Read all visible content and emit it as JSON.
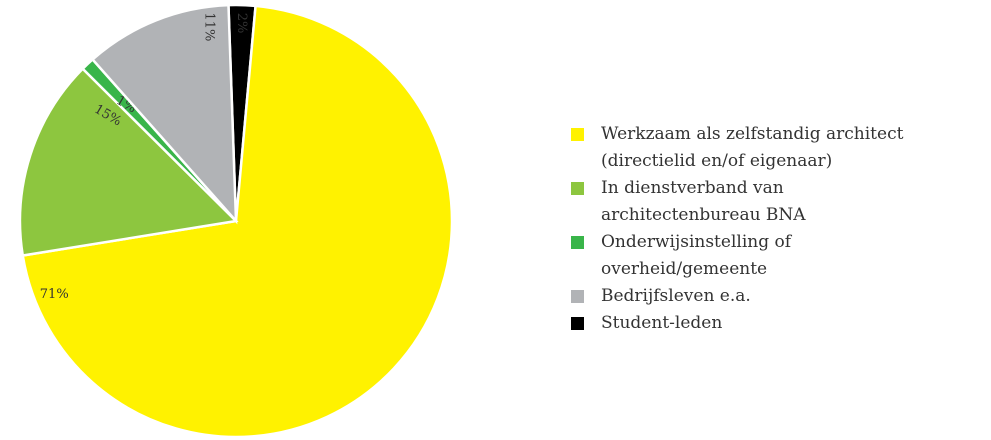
{
  "chart_data": {
    "type": "pie",
    "title": "",
    "slices": [
      {
        "label": "Student-leden",
        "value": 2,
        "display": "2%",
        "color": "#000000"
      },
      {
        "label": "Werkzaam als zelfstandig architect (directielid en/of eigenaar)",
        "value": 71,
        "display": "71%",
        "color": "#fff200"
      },
      {
        "label": "In dienstverband van architectenbureau BNA",
        "value": 15,
        "display": "15%",
        "color": "#8dc63f"
      },
      {
        "label": "Onderwijsinstelling of overheid/gemeente",
        "value": 1,
        "display": "1%",
        "color": "#39b54a"
      },
      {
        "label": "Bedrijfsleven e.a.",
        "value": 11,
        "display": "11%",
        "color": "#b1b3b6"
      }
    ],
    "legend": {
      "placement": "right",
      "items": [
        {
          "lines": [
            "Werkzaam als zelfstandig architect",
            "(directielid en/of eigenaar)"
          ],
          "color": "#fff200"
        },
        {
          "lines": [
            "In dienstverband van",
            "architectenbureau BNA"
          ],
          "color": "#8dc63f"
        },
        {
          "lines": [
            "Onderwijsinstelling of",
            "overheid/gemeente"
          ],
          "color": "#39b54a"
        },
        {
          "lines": [
            "Bedrijfsleven e.a."
          ],
          "color": "#b1b3b6"
        },
        {
          "lines": [
            "Student-leden"
          ],
          "color": "#000000"
        }
      ]
    }
  }
}
